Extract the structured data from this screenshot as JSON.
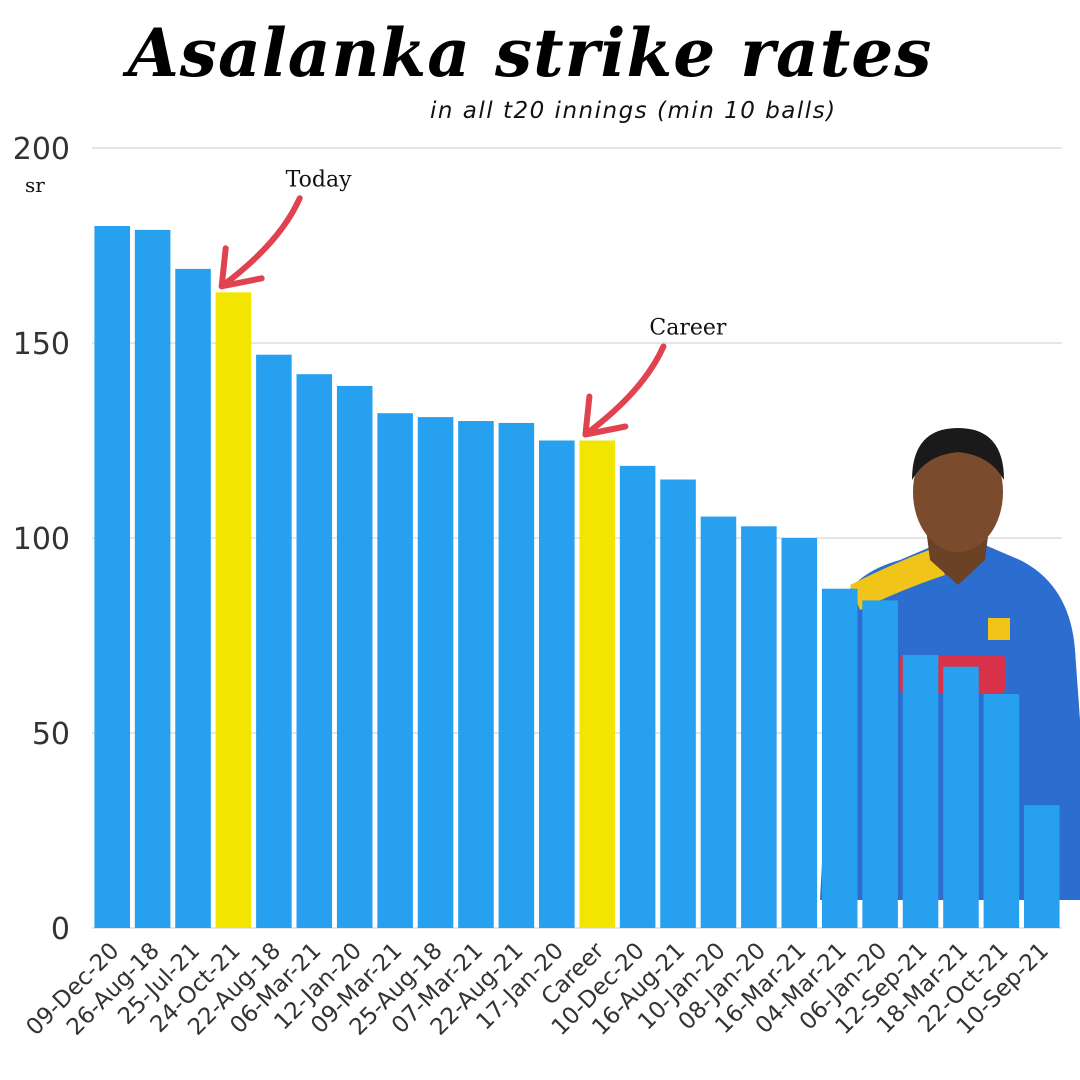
{
  "title": "Asalanka strike rates",
  "subtitle": "in all t20 innings (min 10 balls)",
  "colors": {
    "bar": "#27a0f0",
    "highlight": "#f2e600",
    "arrow": "#e0434f",
    "grid": "#cccccc"
  },
  "chart_data": {
    "type": "bar",
    "ylabel": "sr",
    "ylim": [
      0,
      200
    ],
    "yticks": [
      "0",
      "50",
      "100",
      "150",
      "200"
    ],
    "categories": [
      "09-Dec-20",
      "26-Aug-18",
      "25-Jul-21",
      "24-Oct-21",
      "22-Aug-18",
      "06-Mar-21",
      "12-Jan-20",
      "09-Mar-21",
      "25-Aug-18",
      "07-Mar-21",
      "22-Aug-21",
      "17-Jan-20",
      "Career",
      "10-Dec-20",
      "16-Aug-21",
      "10-Jan-20",
      "08-Jan-20",
      "16-Mar-21",
      "04-Mar-21",
      "06-Jan-20",
      "12-Sep-21",
      "18-Mar-21",
      "22-Oct-21",
      "10-Sep-21"
    ],
    "values": [
      180,
      179,
      169,
      163,
      147,
      142,
      139,
      132,
      131,
      130,
      129.5,
      125,
      125,
      118.5,
      115,
      105.5,
      103,
      100,
      87,
      84,
      70,
      67,
      60,
      31.5
    ],
    "highlighted": [
      "24-Oct-21",
      "Career"
    ],
    "annotations": [
      {
        "text": "Today",
        "target": "24-Oct-21"
      },
      {
        "text": "Career",
        "target": "Career"
      }
    ],
    "grid": true,
    "legend": "none"
  }
}
